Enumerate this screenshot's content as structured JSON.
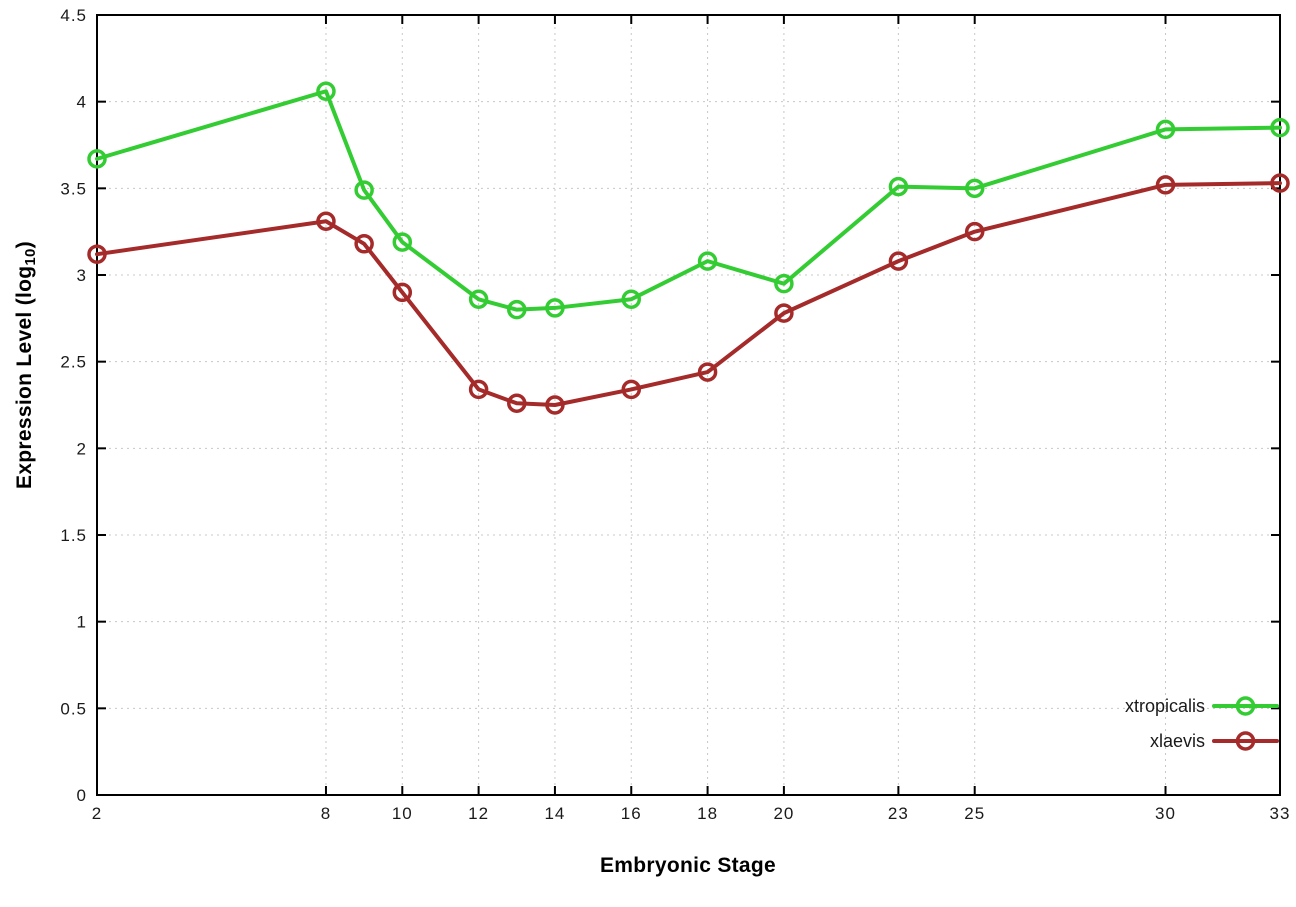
{
  "chart_data": {
    "type": "line",
    "title": "",
    "xlabel": "Embryonic Stage",
    "ylabel": "Expression Level (log10)",
    "ylabel_prefix": "Expression Level (log",
    "ylabel_sub": "10",
    "ylabel_suffix": ")",
    "xlim": [
      2,
      33
    ],
    "ylim": [
      0,
      4.5
    ],
    "x_ticks": [
      2,
      8,
      10,
      12,
      14,
      16,
      18,
      20,
      23,
      25,
      30,
      33
    ],
    "y_ticks": [
      0,
      0.5,
      1,
      1.5,
      2,
      2.5,
      3,
      3.5,
      4,
      4.5
    ],
    "grid": true,
    "legend_position": "bottom-right",
    "x": [
      2,
      8,
      9,
      10,
      12,
      13,
      14,
      16,
      18,
      20,
      23,
      25,
      30,
      33
    ],
    "series": [
      {
        "name": "xtropicalis",
        "color": "#33cc33",
        "values": [
          3.67,
          4.06,
          3.49,
          3.19,
          2.86,
          2.8,
          2.81,
          2.86,
          3.08,
          2.95,
          3.51,
          3.5,
          3.84,
          3.85
        ]
      },
      {
        "name": "xlaevis",
        "color": "#a52a2a",
        "values": [
          3.12,
          3.31,
          3.18,
          2.9,
          2.34,
          2.26,
          2.25,
          2.34,
          2.44,
          2.78,
          3.08,
          3.25,
          3.52,
          3.53
        ]
      }
    ],
    "colors": {
      "grid": "#c8c8c8",
      "border": "#000000",
      "text": "#1a1a1a"
    }
  }
}
